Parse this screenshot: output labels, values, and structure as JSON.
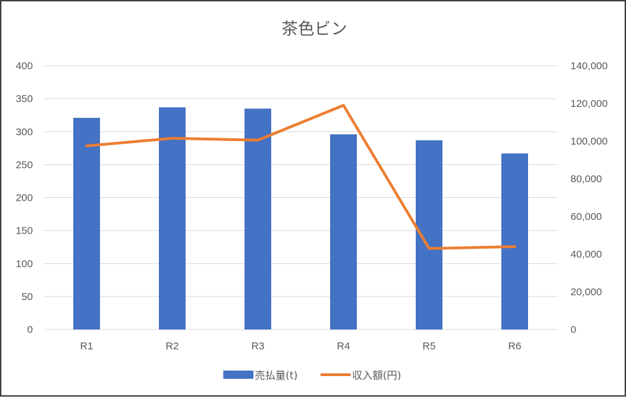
{
  "chart_data": {
    "type": "bar",
    "title": "茶色ビン",
    "categories": [
      "R1",
      "R2",
      "R3",
      "R4",
      "R5",
      "R6"
    ],
    "series": [
      {
        "name": "売払量(t)",
        "type": "bar",
        "axis": "left",
        "color": "#4472c4",
        "values": [
          321,
          337,
          335,
          296,
          287,
          267
        ]
      },
      {
        "name": "収入額(円)",
        "type": "line",
        "axis": "right",
        "color": "#ed7d31",
        "values": [
          97500,
          101500,
          100500,
          119000,
          43000,
          44000
        ]
      }
    ],
    "ylim": [
      0,
      400
    ],
    "y_ticks": [
      "0",
      "50",
      "100",
      "150",
      "200",
      "250",
      "300",
      "350",
      "400"
    ],
    "y2lim": [
      0,
      140000
    ],
    "y2_ticks": [
      "0",
      "20,000",
      "40,000",
      "60,000",
      "80,000",
      "100,000",
      "120,000",
      "140,000"
    ],
    "grid": true,
    "legend_position": "bottom"
  }
}
